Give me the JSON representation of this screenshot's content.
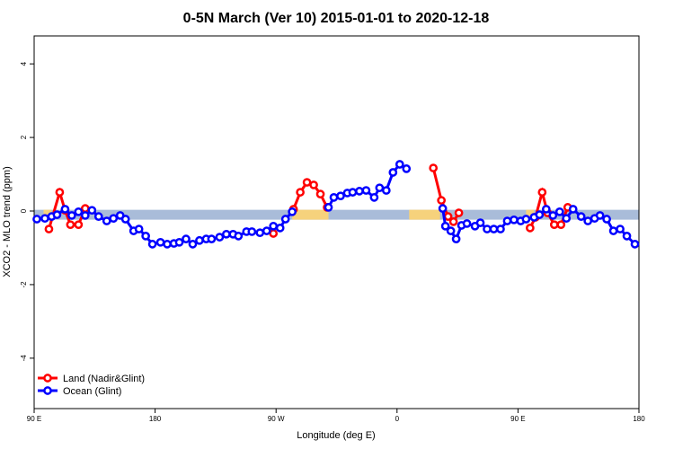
{
  "chart_data": {
    "type": "line",
    "title": "0-5N March (Ver 10)   2015-01-01 to 2020-12-18",
    "x_label": "Longitude (deg E)",
    "y_label": "XCO2 - MLO trend (ppm)",
    "xlim": [
      90,
      540
    ],
    "ylim": [
      -5.37,
      4.76
    ],
    "xticks": [
      {
        "value": 90,
        "label": "90 E"
      },
      180,
      {
        "value": 270,
        "label": "90 W"
      },
      {
        "value": 360,
        "label": "0"
      },
      {
        "value": 450,
        "label": "90 E"
      },
      {
        "value": 540,
        "label": "180"
      }
    ],
    "yticks": [
      -4,
      -2,
      0,
      2,
      4
    ],
    "legend": "bottom-left",
    "band_y": -0.1,
    "band_color": "#a9bcd9",
    "land_color": "#f6d27c",
    "land_spans": [
      [
        97,
        103
      ],
      [
        282,
        309
      ],
      [
        369,
        392
      ],
      [
        456,
        462
      ]
    ],
    "series": [
      {
        "name": "Land (Nadir&Glint)",
        "color": "#ff0000",
        "x": [
          101,
          109,
          113,
          117,
          123,
          128,
          null,
          268,
          null,
          283,
          288,
          293,
          298,
          303,
          308,
          null,
          387,
          393,
          398,
          402,
          406,
          null,
          459,
          463,
          468,
          472,
          477,
          482,
          487
        ],
        "values": [
          -0.49,
          0.51,
          0.02,
          -0.37,
          -0.37,
          0.07,
          null,
          -0.61,
          null,
          0.05,
          0.51,
          0.78,
          0.71,
          0.46,
          0.1,
          null,
          1.17,
          0.29,
          -0.15,
          -0.29,
          -0.05,
          null,
          -0.46,
          -0.17,
          0.51,
          -0.05,
          -0.37,
          -0.37,
          0.1
        ]
      },
      {
        "name": "Ocean (Glint)",
        "color": "#0000ff",
        "x": [
          92,
          98,
          103,
          107,
          113,
          118,
          123,
          128,
          133,
          138,
          144,
          149,
          154,
          158,
          164,
          168,
          173,
          178,
          184,
          189,
          194,
          198,
          203,
          208,
          213,
          218,
          222,
          228,
          233,
          238,
          242,
          248,
          252,
          258,
          263,
          268,
          273,
          277,
          282,
          null,
          309,
          313,
          318,
          323,
          327,
          332,
          337,
          343,
          347,
          352,
          357,
          362,
          367,
          null,
          394,
          396,
          400,
          404,
          408,
          412,
          418,
          422,
          427,
          432,
          437,
          442,
          447,
          452,
          456,
          462,
          466,
          471,
          476,
          481,
          486,
          491,
          497,
          502,
          507,
          511,
          516,
          521,
          526,
          531,
          537
        ],
        "values": [
          -0.22,
          -0.2,
          -0.15,
          -0.1,
          0.05,
          -0.12,
          -0.02,
          -0.12,
          0.02,
          -0.15,
          -0.27,
          -0.2,
          -0.12,
          -0.22,
          -0.54,
          -0.49,
          -0.68,
          -0.9,
          -0.85,
          -0.9,
          -0.88,
          -0.85,
          -0.76,
          -0.9,
          -0.8,
          -0.76,
          -0.76,
          -0.71,
          -0.63,
          -0.63,
          -0.68,
          -0.56,
          -0.56,
          -0.59,
          -0.54,
          -0.41,
          -0.46,
          -0.22,
          -0.02,
          null,
          0.1,
          0.37,
          0.41,
          0.49,
          0.51,
          0.54,
          0.56,
          0.37,
          0.63,
          0.56,
          1.05,
          1.27,
          1.15,
          null,
          0.07,
          -0.41,
          -0.54,
          -0.76,
          -0.39,
          -0.34,
          -0.41,
          -0.32,
          -0.49,
          -0.49,
          -0.49,
          -0.27,
          -0.24,
          -0.27,
          -0.22,
          -0.17,
          -0.1,
          0.05,
          -0.12,
          -0.02,
          -0.2,
          0.05,
          -0.15,
          -0.27,
          -0.2,
          -0.12,
          -0.22,
          -0.54,
          -0.49,
          -0.68,
          -0.9
        ]
      }
    ]
  }
}
